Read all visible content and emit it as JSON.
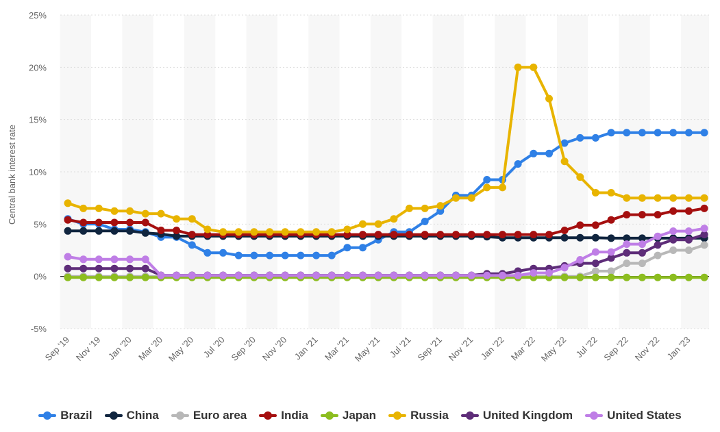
{
  "chart_data": {
    "type": "line",
    "title": "",
    "xlabel": "",
    "ylabel": "Central bank interest rate",
    "ylim": [
      -5,
      25
    ],
    "y_ticks": [
      "-5%",
      "0%",
      "5%",
      "10%",
      "15%",
      "20%",
      "25%"
    ],
    "y_tick_values": [
      -5,
      0,
      5,
      10,
      15,
      20,
      25
    ],
    "x_tick_labels": [
      "Sep '19",
      "Nov '19",
      "Jan '20",
      "Mar '20",
      "May '20",
      "Jul '20",
      "Sep '20",
      "Nov '20",
      "Jan '21",
      "Mar '21",
      "May '21",
      "Jul '21",
      "Sep '21",
      "Nov '21",
      "Jan '22",
      "Mar '22",
      "May '22",
      "Jul '22",
      "Sep '22",
      "Nov '22",
      "Jan '23"
    ],
    "x": [
      "Sep '19",
      "Oct '19",
      "Nov '19",
      "Dec '19",
      "Jan '20",
      "Feb '20",
      "Mar '20",
      "Apr '20",
      "May '20",
      "Jun '20",
      "Jul '20",
      "Aug '20",
      "Sep '20",
      "Oct '20",
      "Nov '20",
      "Dec '20",
      "Jan '21",
      "Feb '21",
      "Mar '21",
      "Apr '21",
      "May '21",
      "Jun '21",
      "Jul '21",
      "Aug '21",
      "Sep '21",
      "Oct '21",
      "Nov '21",
      "Dec '21",
      "Jan '22",
      "Feb '22",
      "Mar '22",
      "Apr '22",
      "May '22",
      "Jun '22",
      "Jul '22",
      "Aug '22",
      "Sep '22",
      "Oct '22",
      "Nov '22",
      "Dec '22",
      "Jan '23",
      "Feb '23"
    ],
    "grid": "horizontal",
    "legend_position": "bottom",
    "series": [
      {
        "name": "Brazil",
        "color": "#2f80e6",
        "values": [
          5.5,
          5.0,
          5.0,
          4.5,
          4.5,
          4.25,
          3.75,
          3.75,
          3.0,
          2.25,
          2.25,
          2.0,
          2.0,
          2.0,
          2.0,
          2.0,
          2.0,
          2.0,
          2.75,
          2.75,
          3.5,
          4.25,
          4.25,
          5.25,
          6.25,
          7.75,
          7.75,
          9.25,
          9.25,
          10.75,
          11.75,
          11.75,
          12.75,
          13.25,
          13.25,
          13.75,
          13.75,
          13.75,
          13.75,
          13.75,
          13.75,
          13.75
        ]
      },
      {
        "name": "China",
        "color": "#10253f",
        "values": [
          4.35,
          4.35,
          4.35,
          4.35,
          4.35,
          4.15,
          4.05,
          3.85,
          3.85,
          3.85,
          3.85,
          3.85,
          3.85,
          3.85,
          3.85,
          3.85,
          3.85,
          3.85,
          3.85,
          3.85,
          3.85,
          3.85,
          3.85,
          3.85,
          3.85,
          3.85,
          3.85,
          3.8,
          3.7,
          3.7,
          3.7,
          3.7,
          3.7,
          3.7,
          3.7,
          3.65,
          3.65,
          3.65,
          3.65,
          3.65,
          3.65,
          3.65
        ]
      },
      {
        "name": "Euro area",
        "color": "#b8b8b8",
        "values": [
          0,
          0,
          0,
          0,
          0,
          0,
          0,
          0,
          0,
          0,
          0,
          0,
          0,
          0,
          0,
          0,
          0,
          0,
          0,
          0,
          0,
          0,
          0,
          0,
          0,
          0,
          0,
          0,
          0,
          0,
          0,
          0,
          0,
          0,
          0.5,
          0.5,
          1.25,
          1.25,
          2.0,
          2.5,
          2.5,
          3.0
        ]
      },
      {
        "name": "India",
        "color": "#a50f0f",
        "values": [
          5.4,
          5.15,
          5.15,
          5.15,
          5.15,
          5.15,
          4.4,
          4.4,
          4.0,
          4.0,
          4.0,
          4.0,
          4.0,
          4.0,
          4.0,
          4.0,
          4.0,
          4.0,
          4.0,
          4.0,
          4.0,
          4.0,
          4.0,
          4.0,
          4.0,
          4.0,
          4.0,
          4.0,
          4.0,
          4.0,
          4.0,
          4.0,
          4.4,
          4.9,
          4.9,
          5.4,
          5.9,
          5.9,
          5.9,
          6.25,
          6.25,
          6.5
        ]
      },
      {
        "name": "Japan",
        "color": "#8cbd1f",
        "values": [
          -0.1,
          -0.1,
          -0.1,
          -0.1,
          -0.1,
          -0.1,
          -0.1,
          -0.1,
          -0.1,
          -0.1,
          -0.1,
          -0.1,
          -0.1,
          -0.1,
          -0.1,
          -0.1,
          -0.1,
          -0.1,
          -0.1,
          -0.1,
          -0.1,
          -0.1,
          -0.1,
          -0.1,
          -0.1,
          -0.1,
          -0.1,
          -0.1,
          -0.1,
          -0.1,
          -0.1,
          -0.1,
          -0.1,
          -0.1,
          -0.1,
          -0.1,
          -0.1,
          -0.1,
          -0.1,
          -0.1,
          -0.1,
          -0.1
        ]
      },
      {
        "name": "Russia",
        "color": "#e8b400",
        "values": [
          7.0,
          6.5,
          6.5,
          6.25,
          6.25,
          6.0,
          6.0,
          5.5,
          5.5,
          4.5,
          4.25,
          4.25,
          4.25,
          4.25,
          4.25,
          4.25,
          4.25,
          4.25,
          4.5,
          5.0,
          5.0,
          5.5,
          6.5,
          6.5,
          6.75,
          7.5,
          7.5,
          8.5,
          8.5,
          20.0,
          20.0,
          17.0,
          11.0,
          9.5,
          8.0,
          8.0,
          7.5,
          7.5,
          7.5,
          7.5,
          7.5,
          7.5
        ]
      },
      {
        "name": "United Kingdom",
        "color": "#5e2d79",
        "values": [
          0.75,
          0.75,
          0.75,
          0.75,
          0.75,
          0.75,
          0.1,
          0.1,
          0.1,
          0.1,
          0.1,
          0.1,
          0.1,
          0.1,
          0.1,
          0.1,
          0.1,
          0.1,
          0.1,
          0.1,
          0.1,
          0.1,
          0.1,
          0.1,
          0.1,
          0.1,
          0.1,
          0.25,
          0.25,
          0.5,
          0.75,
          0.75,
          1.0,
          1.25,
          1.25,
          1.75,
          2.25,
          2.25,
          3.0,
          3.5,
          3.5,
          4.0
        ]
      },
      {
        "name": "United States",
        "color": "#bf7ee6",
        "values": [
          1.88,
          1.63,
          1.63,
          1.63,
          1.63,
          1.63,
          0.08,
          0.08,
          0.08,
          0.08,
          0.08,
          0.08,
          0.08,
          0.08,
          0.08,
          0.08,
          0.08,
          0.08,
          0.08,
          0.08,
          0.08,
          0.08,
          0.08,
          0.08,
          0.08,
          0.08,
          0.08,
          0.08,
          0.08,
          0.08,
          0.33,
          0.33,
          0.83,
          1.58,
          2.33,
          2.33,
          3.08,
          3.08,
          3.83,
          4.33,
          4.33,
          4.58
        ]
      }
    ]
  }
}
